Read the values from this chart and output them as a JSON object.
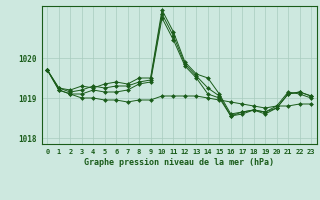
{
  "title": "Graphe pression niveau de la mer (hPa)",
  "background_color": "#cde8df",
  "plot_bg_color": "#cde8df",
  "line_color": "#1a5c1a",
  "marker_color": "#1a5c1a",
  "grid_color": "#a8ccbe",
  "ylim": [
    1017.85,
    1021.3
  ],
  "yticks": [
    1018,
    1019,
    1020
  ],
  "xlim": [
    -0.5,
    23.5
  ],
  "xtick_labels": [
    "0",
    "1",
    "2",
    "3",
    "4",
    "5",
    "6",
    "7",
    "8",
    "9",
    "10",
    "11",
    "12",
    "13",
    "14",
    "15",
    "16",
    "17",
    "18",
    "19",
    "20",
    "21",
    "22",
    "23"
  ],
  "series": [
    [
      1019.7,
      1019.2,
      1019.1,
      1019.0,
      1019.0,
      1018.95,
      1018.95,
      1018.9,
      1018.95,
      1018.95,
      1019.05,
      1019.05,
      1019.05,
      1019.05,
      1019.0,
      1018.95,
      1018.9,
      1018.85,
      1018.8,
      1018.75,
      1018.8,
      1018.8,
      1018.85,
      1018.85
    ],
    [
      1019.7,
      1019.25,
      1019.2,
      1019.3,
      1019.25,
      1019.35,
      1019.4,
      1019.35,
      1019.5,
      1019.5,
      1021.2,
      1020.65,
      1019.9,
      1019.6,
      1019.5,
      1019.1,
      1018.6,
      1018.65,
      1018.7,
      1018.65,
      1018.75,
      1019.1,
      1019.15,
      1019.05
    ],
    [
      1019.7,
      1019.25,
      1019.15,
      1019.2,
      1019.3,
      1019.25,
      1019.3,
      1019.3,
      1019.4,
      1019.45,
      1021.1,
      1020.55,
      1019.85,
      1019.55,
      1019.25,
      1019.05,
      1018.55,
      1018.6,
      1018.7,
      1018.6,
      1018.75,
      1019.1,
      1019.15,
      1019.05
    ],
    [
      1019.7,
      1019.2,
      1019.1,
      1019.1,
      1019.2,
      1019.15,
      1019.15,
      1019.2,
      1019.35,
      1019.4,
      1021.0,
      1020.45,
      1019.8,
      1019.5,
      1019.1,
      1019.0,
      1018.55,
      1018.65,
      1018.7,
      1018.65,
      1018.8,
      1019.15,
      1019.1,
      1019.0
    ]
  ]
}
